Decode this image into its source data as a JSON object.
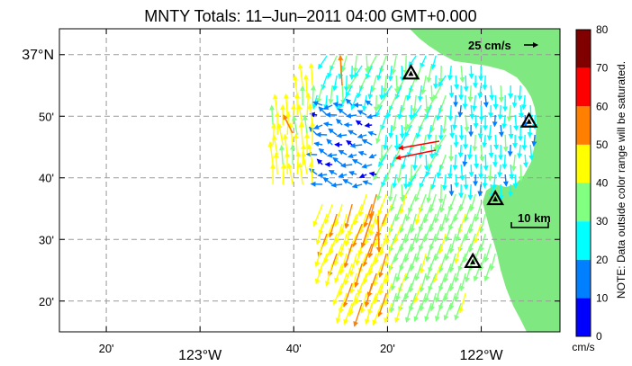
{
  "title": "MNTY Totals: 11–Jun–2011 04:00 GMT+0.000",
  "lat_ticks": [
    {
      "lat": 37.0,
      "label": "37°N",
      "big": true
    },
    {
      "lat": 36.8333,
      "label": "50'",
      "big": false
    },
    {
      "lat": 36.6667,
      "label": "40'",
      "big": false
    },
    {
      "lat": 36.5,
      "label": "30'",
      "big": false
    },
    {
      "lat": 36.3333,
      "label": "20'",
      "big": false
    }
  ],
  "lon_ticks": [
    {
      "lon": -123.3333,
      "label": "20'",
      "big": false
    },
    {
      "lon": -123.0,
      "label": "123°W",
      "big": true
    },
    {
      "lon": -122.6667,
      "label": "40'",
      "big": false
    },
    {
      "lon": -122.3333,
      "label": "20'",
      "big": false
    },
    {
      "lon": -122.0,
      "label": "122°W",
      "big": true
    }
  ],
  "speed_scale_label": "25 cm/s",
  "distance_scale_label": "10 km",
  "colorbar": {
    "ticks": [
      "0",
      "10",
      "20",
      "30",
      "40",
      "50",
      "60",
      "70",
      "80"
    ],
    "colors": [
      "#0000ff",
      "#0080ff",
      "#00ffff",
      "#80ff80",
      "#ffff00",
      "#ff8000",
      "#ff0000",
      "#800000"
    ],
    "unit": "cm/s",
    "note": "NOTE: Data outside color range will be saturated."
  },
  "land_color": "#80e880",
  "stations": [
    {
      "lon": -122.25,
      "lat": 36.95
    },
    {
      "lon": -121.83,
      "lat": 36.82
    },
    {
      "lon": -121.95,
      "lat": 36.61
    },
    {
      "lon": -122.03,
      "lat": 36.44
    }
  ]
}
